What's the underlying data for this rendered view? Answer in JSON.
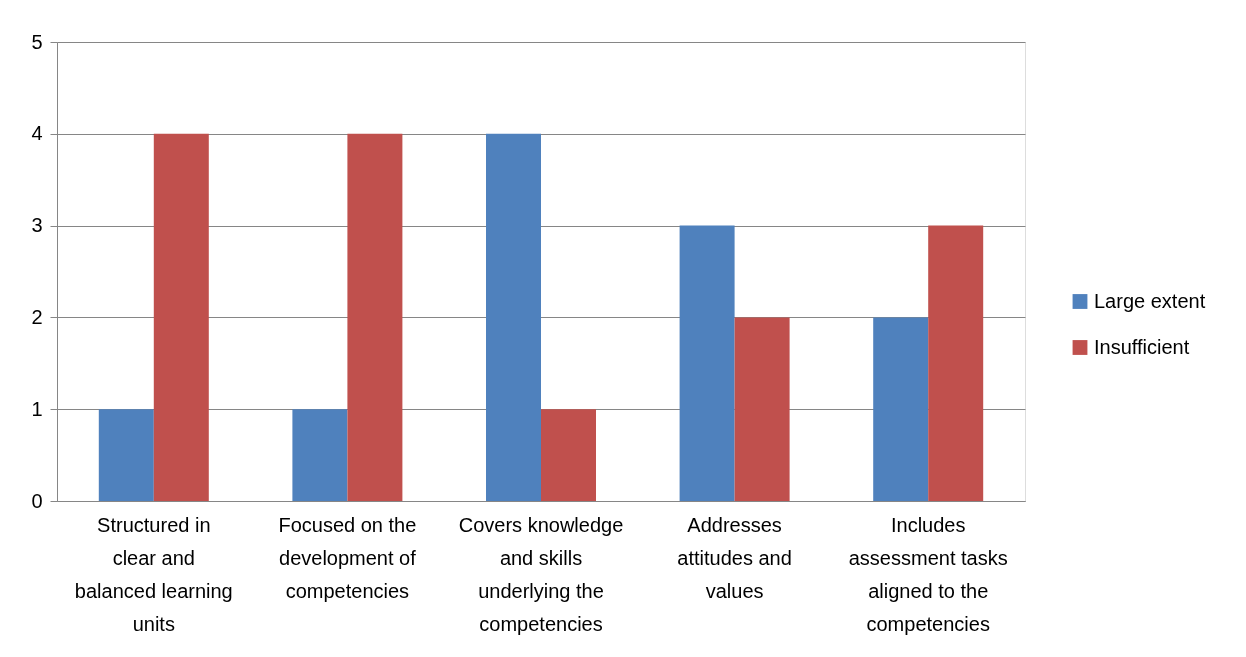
{
  "chart_data": {
    "type": "bar",
    "categories": [
      "Structured in clear and balanced learning units",
      "Focused on the development of competencies",
      "Covers knowledge and skills underlying the competencies",
      "Addresses attitudes and values",
      "Includes assessment tasks aligned to the competencies"
    ],
    "series": [
      {
        "name": "Large extent",
        "color": "#4f81bd",
        "values": [
          1,
          1,
          4,
          3,
          2
        ]
      },
      {
        "name": "Insufficient",
        "color": "#c0504d",
        "values": [
          4,
          4,
          1,
          2,
          3
        ]
      }
    ],
    "ylim": [
      0,
      5
    ],
    "yticks": [
      0,
      1,
      2,
      3,
      4,
      5
    ],
    "grid": "y",
    "legend": "right"
  }
}
